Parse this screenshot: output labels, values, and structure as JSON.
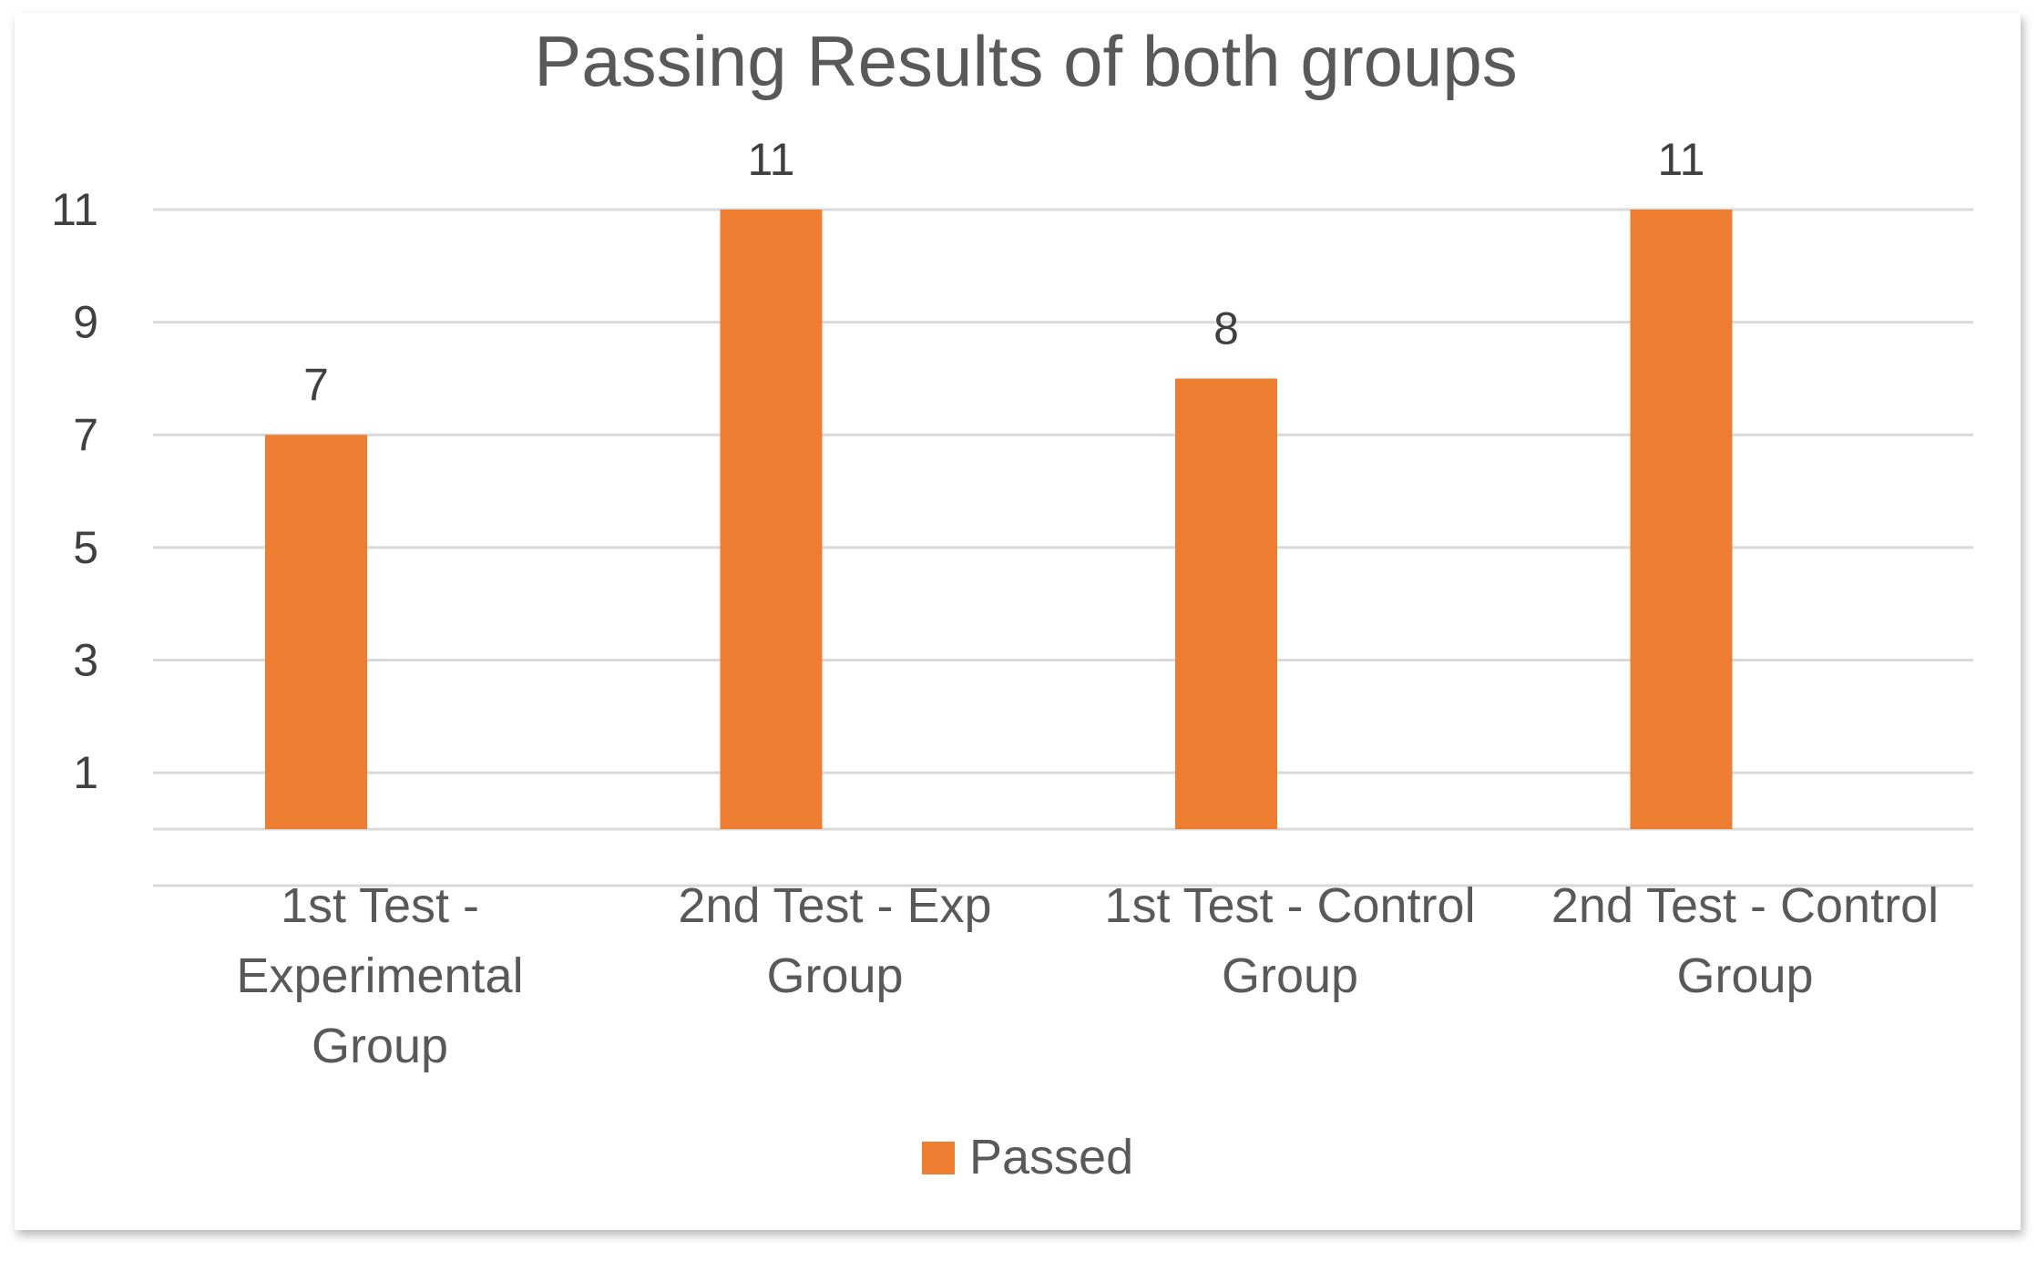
{
  "chart_data": {
    "type": "bar",
    "title": "Passing Results of both groups",
    "categories": [
      [
        "1st Test -",
        "Experimental",
        "Group"
      ],
      [
        "2nd Test - Exp",
        "Group"
      ],
      [
        "1st Test - Control",
        "Group"
      ],
      [
        "2nd Test - Control",
        "Group"
      ]
    ],
    "series": [
      {
        "name": "Passed",
        "values": [
          7,
          11,
          8,
          11
        ],
        "color": "#ED7D31"
      }
    ],
    "yticks": [
      1,
      3,
      5,
      7,
      9,
      11
    ],
    "ylim": [
      0,
      11
    ],
    "grid": true,
    "legend": "bottom",
    "data_labels": true
  }
}
